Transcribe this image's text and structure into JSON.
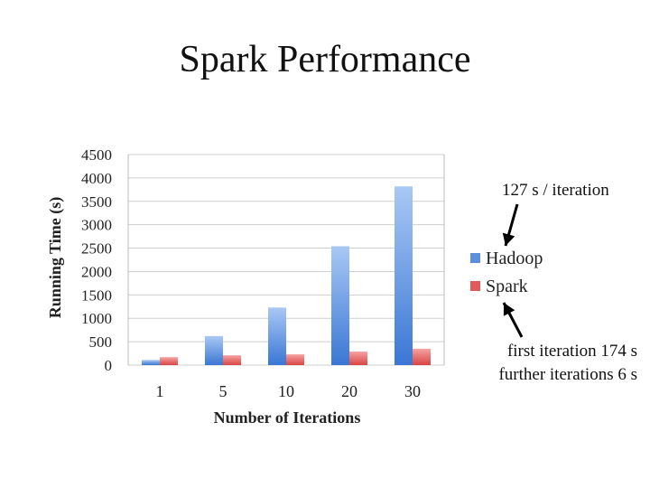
{
  "slide": {
    "title": "Spark Performance"
  },
  "annotations": {
    "hadoop_note": "127 s / iteration",
    "spark_note_line1": "first iteration 174 s",
    "spark_note_line2": "further iterations 6 s"
  },
  "chart_data": {
    "type": "bar",
    "title": "",
    "xlabel": "Number of Iterations",
    "ylabel": "Running Time (s)",
    "categories": [
      "1",
      "5",
      "10",
      "20",
      "30"
    ],
    "ylim": [
      0,
      4500
    ],
    "yticks": [
      0,
      500,
      1000,
      1500,
      2000,
      2500,
      3000,
      3500,
      4000,
      4500
    ],
    "grid": true,
    "legend": "right",
    "series": [
      {
        "name": "Hadoop",
        "color": "#5b8fdc",
        "values": [
          110,
          620,
          1230,
          2540,
          3820
        ]
      },
      {
        "name": "Spark",
        "color": "#e15a5a",
        "values": [
          170,
          210,
          230,
          290,
          350
        ]
      }
    ]
  }
}
